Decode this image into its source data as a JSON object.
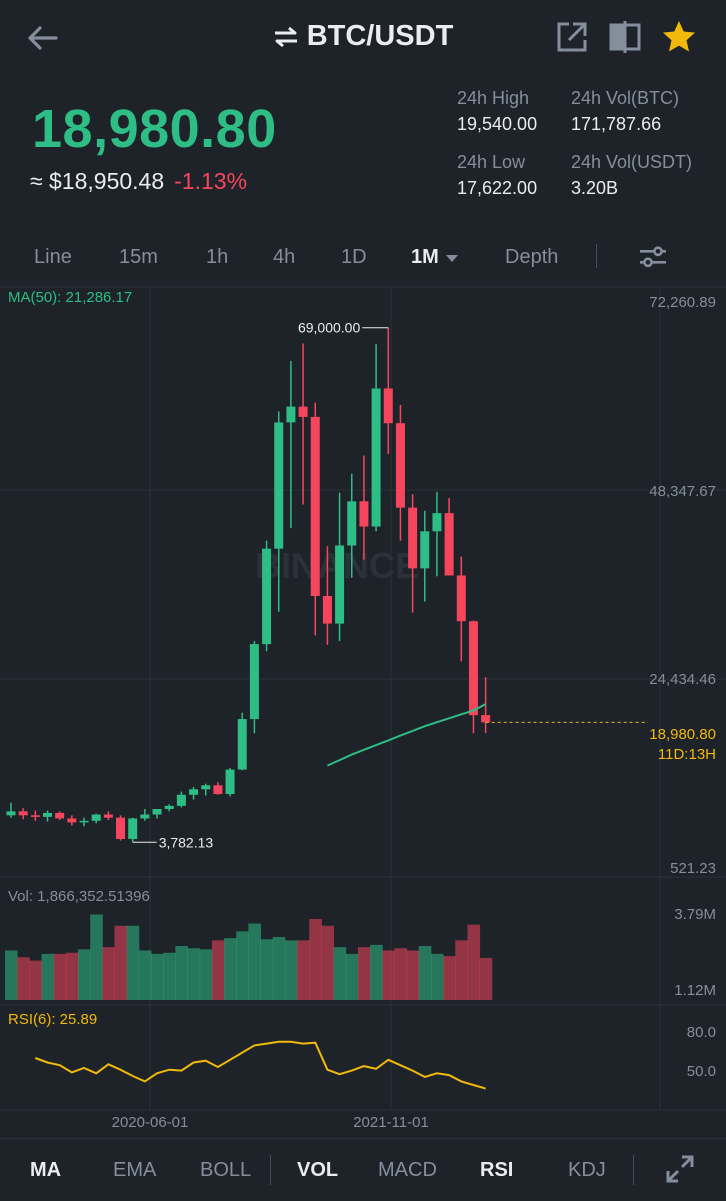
{
  "header": {
    "pair": "BTC/USDT",
    "icons": [
      "back-arrow-icon",
      "swap-icon",
      "share-icon",
      "split-view-icon",
      "star-icon"
    ]
  },
  "price": {
    "last": "18,980.80",
    "fiat": "≈ $18,950.48",
    "change": "-1.13%"
  },
  "stats": {
    "high_label": "24h High",
    "high_value": "19,540.00",
    "vol_btc_label": "24h Vol(BTC)",
    "vol_btc_value": "171,787.66",
    "low_label": "24h Low",
    "low_value": "17,622.00",
    "vol_usdt_label": "24h Vol(USDT)",
    "vol_usdt_value": "3.20B"
  },
  "intervals": [
    "Line",
    "15m",
    "1h",
    "4h",
    "1D",
    "1M",
    "Depth"
  ],
  "active_interval": "1M",
  "chart": {
    "ma_label": "MA(50): 21,286.17",
    "y_ticks": [
      "72,260.89",
      "48,347.67",
      "24,434.46",
      "521.23"
    ],
    "current_price": "18,980.80",
    "countdown": "11D:13H",
    "high_marker": "69,000.00",
    "low_marker": "3,782.13",
    "vol_label": "Vol: 1,866,352.51396",
    "vol_ticks": [
      "3.79M",
      "1.12M"
    ],
    "rsi_label": "RSI(6): 25.89",
    "rsi_ticks": [
      "80.0",
      "50.0"
    ],
    "x_ticks": [
      "2020-06-01",
      "2021-11-01"
    ],
    "watermark": "BINANCE"
  },
  "colors": {
    "up": "#2ebd85",
    "down": "#f6465d",
    "ma": "#2ebd85",
    "rsi": "#f0b90b",
    "bg": "#1e2329"
  },
  "chart_data": {
    "type": "candlestick",
    "interval": "1M",
    "y_range": [
      521.23,
      72260.89
    ],
    "candles": [
      {
        "o": 7200,
        "h": 8800,
        "l": 6900,
        "c": 7700
      },
      {
        "o": 7700,
        "h": 8100,
        "l": 6700,
        "c": 7200
      },
      {
        "o": 7200,
        "h": 7800,
        "l": 6500,
        "c": 7000
      },
      {
        "o": 7000,
        "h": 7800,
        "l": 6400,
        "c": 7500
      },
      {
        "o": 7500,
        "h": 7700,
        "l": 6600,
        "c": 6800
      },
      {
        "o": 6800,
        "h": 7200,
        "l": 5900,
        "c": 6300
      },
      {
        "o": 6300,
        "h": 6900,
        "l": 5800,
        "c": 6500
      },
      {
        "o": 6500,
        "h": 7400,
        "l": 6200,
        "c": 7300
      },
      {
        "o": 7300,
        "h": 7700,
        "l": 6600,
        "c": 6900
      },
      {
        "o": 6900,
        "h": 7200,
        "l": 4000,
        "c": 4200
      },
      {
        "o": 4200,
        "h": 6900,
        "l": 3782.13,
        "c": 6800
      },
      {
        "o": 6800,
        "h": 8000,
        "l": 6500,
        "c": 7300
      },
      {
        "o": 7300,
        "h": 8000,
        "l": 6800,
        "c": 8000
      },
      {
        "o": 8000,
        "h": 8600,
        "l": 7700,
        "c": 8400
      },
      {
        "o": 8400,
        "h": 10200,
        "l": 8200,
        "c": 9800
      },
      {
        "o": 9800,
        "h": 10800,
        "l": 9200,
        "c": 10500
      },
      {
        "o": 10500,
        "h": 11200,
        "l": 9700,
        "c": 11000
      },
      {
        "o": 11000,
        "h": 11400,
        "l": 9800,
        "c": 9900
      },
      {
        "o": 9900,
        "h": 13200,
        "l": 9600,
        "c": 13000
      },
      {
        "o": 13000,
        "h": 20200,
        "l": 12900,
        "c": 19400
      },
      {
        "o": 19400,
        "h": 29300,
        "l": 17600,
        "c": 28900
      },
      {
        "o": 28900,
        "h": 42000,
        "l": 28000,
        "c": 41000
      },
      {
        "o": 41000,
        "h": 58400,
        "l": 33000,
        "c": 57000
      },
      {
        "o": 57000,
        "h": 64800,
        "l": 43600,
        "c": 59000
      },
      {
        "o": 59000,
        "h": 67000,
        "l": 46600,
        "c": 57700
      },
      {
        "o": 57700,
        "h": 59500,
        "l": 30000,
        "c": 35000
      },
      {
        "o": 35000,
        "h": 41300,
        "l": 28800,
        "c": 31500
      },
      {
        "o": 31500,
        "h": 48100,
        "l": 29300,
        "c": 41400
      },
      {
        "o": 41400,
        "h": 50500,
        "l": 37300,
        "c": 47000
      },
      {
        "o": 47000,
        "h": 52800,
        "l": 39600,
        "c": 43800
      },
      {
        "o": 43800,
        "h": 66900,
        "l": 43200,
        "c": 61300
      },
      {
        "o": 61300,
        "h": 69000,
        "l": 53000,
        "c": 56900
      },
      {
        "o": 56900,
        "h": 59200,
        "l": 42000,
        "c": 46200
      },
      {
        "o": 46200,
        "h": 47900,
        "l": 32900,
        "c": 38500
      },
      {
        "o": 38500,
        "h": 45800,
        "l": 34300,
        "c": 43200
      },
      {
        "o": 43200,
        "h": 48200,
        "l": 37500,
        "c": 45500
      },
      {
        "o": 45500,
        "h": 47400,
        "l": 37700,
        "c": 37600
      },
      {
        "o": 37600,
        "h": 40000,
        "l": 26700,
        "c": 31800
      },
      {
        "o": 31800,
        "h": 31900,
        "l": 17600,
        "c": 19900
      },
      {
        "o": 19900,
        "h": 24700,
        "l": 17622,
        "c": 18980.8
      }
    ],
    "ma50": {
      "start_index": 26,
      "values": [
        13500,
        14200,
        14900,
        15500,
        16100,
        16700,
        17300,
        17900,
        18500,
        19000,
        19500,
        20000,
        20500,
        21286.17
      ]
    },
    "volume": [
      2.2,
      1.9,
      1.75,
      2.05,
      2.05,
      2.1,
      2.25,
      3.8,
      2.35,
      3.3,
      3.3,
      2.2,
      2.05,
      2.1,
      2.4,
      2.3,
      2.25,
      2.65,
      2.75,
      3.05,
      3.4,
      2.7,
      2.8,
      2.65,
      2.65,
      3.6,
      3.3,
      2.35,
      2.05,
      2.35,
      2.45,
      2.2,
      2.3,
      2.2,
      2.4,
      2.05,
      1.95,
      2.65,
      3.35,
      1.87
    ],
    "rsi": [
      60,
      55,
      52,
      44,
      49,
      43,
      53,
      47,
      40,
      34,
      43,
      47,
      46,
      55,
      57,
      50,
      58,
      66,
      74,
      76,
      78,
      78,
      76,
      77,
      47,
      42,
      46,
      51,
      48,
      58,
      52,
      46,
      39,
      43,
      41,
      34,
      30,
      26
    ]
  }
}
